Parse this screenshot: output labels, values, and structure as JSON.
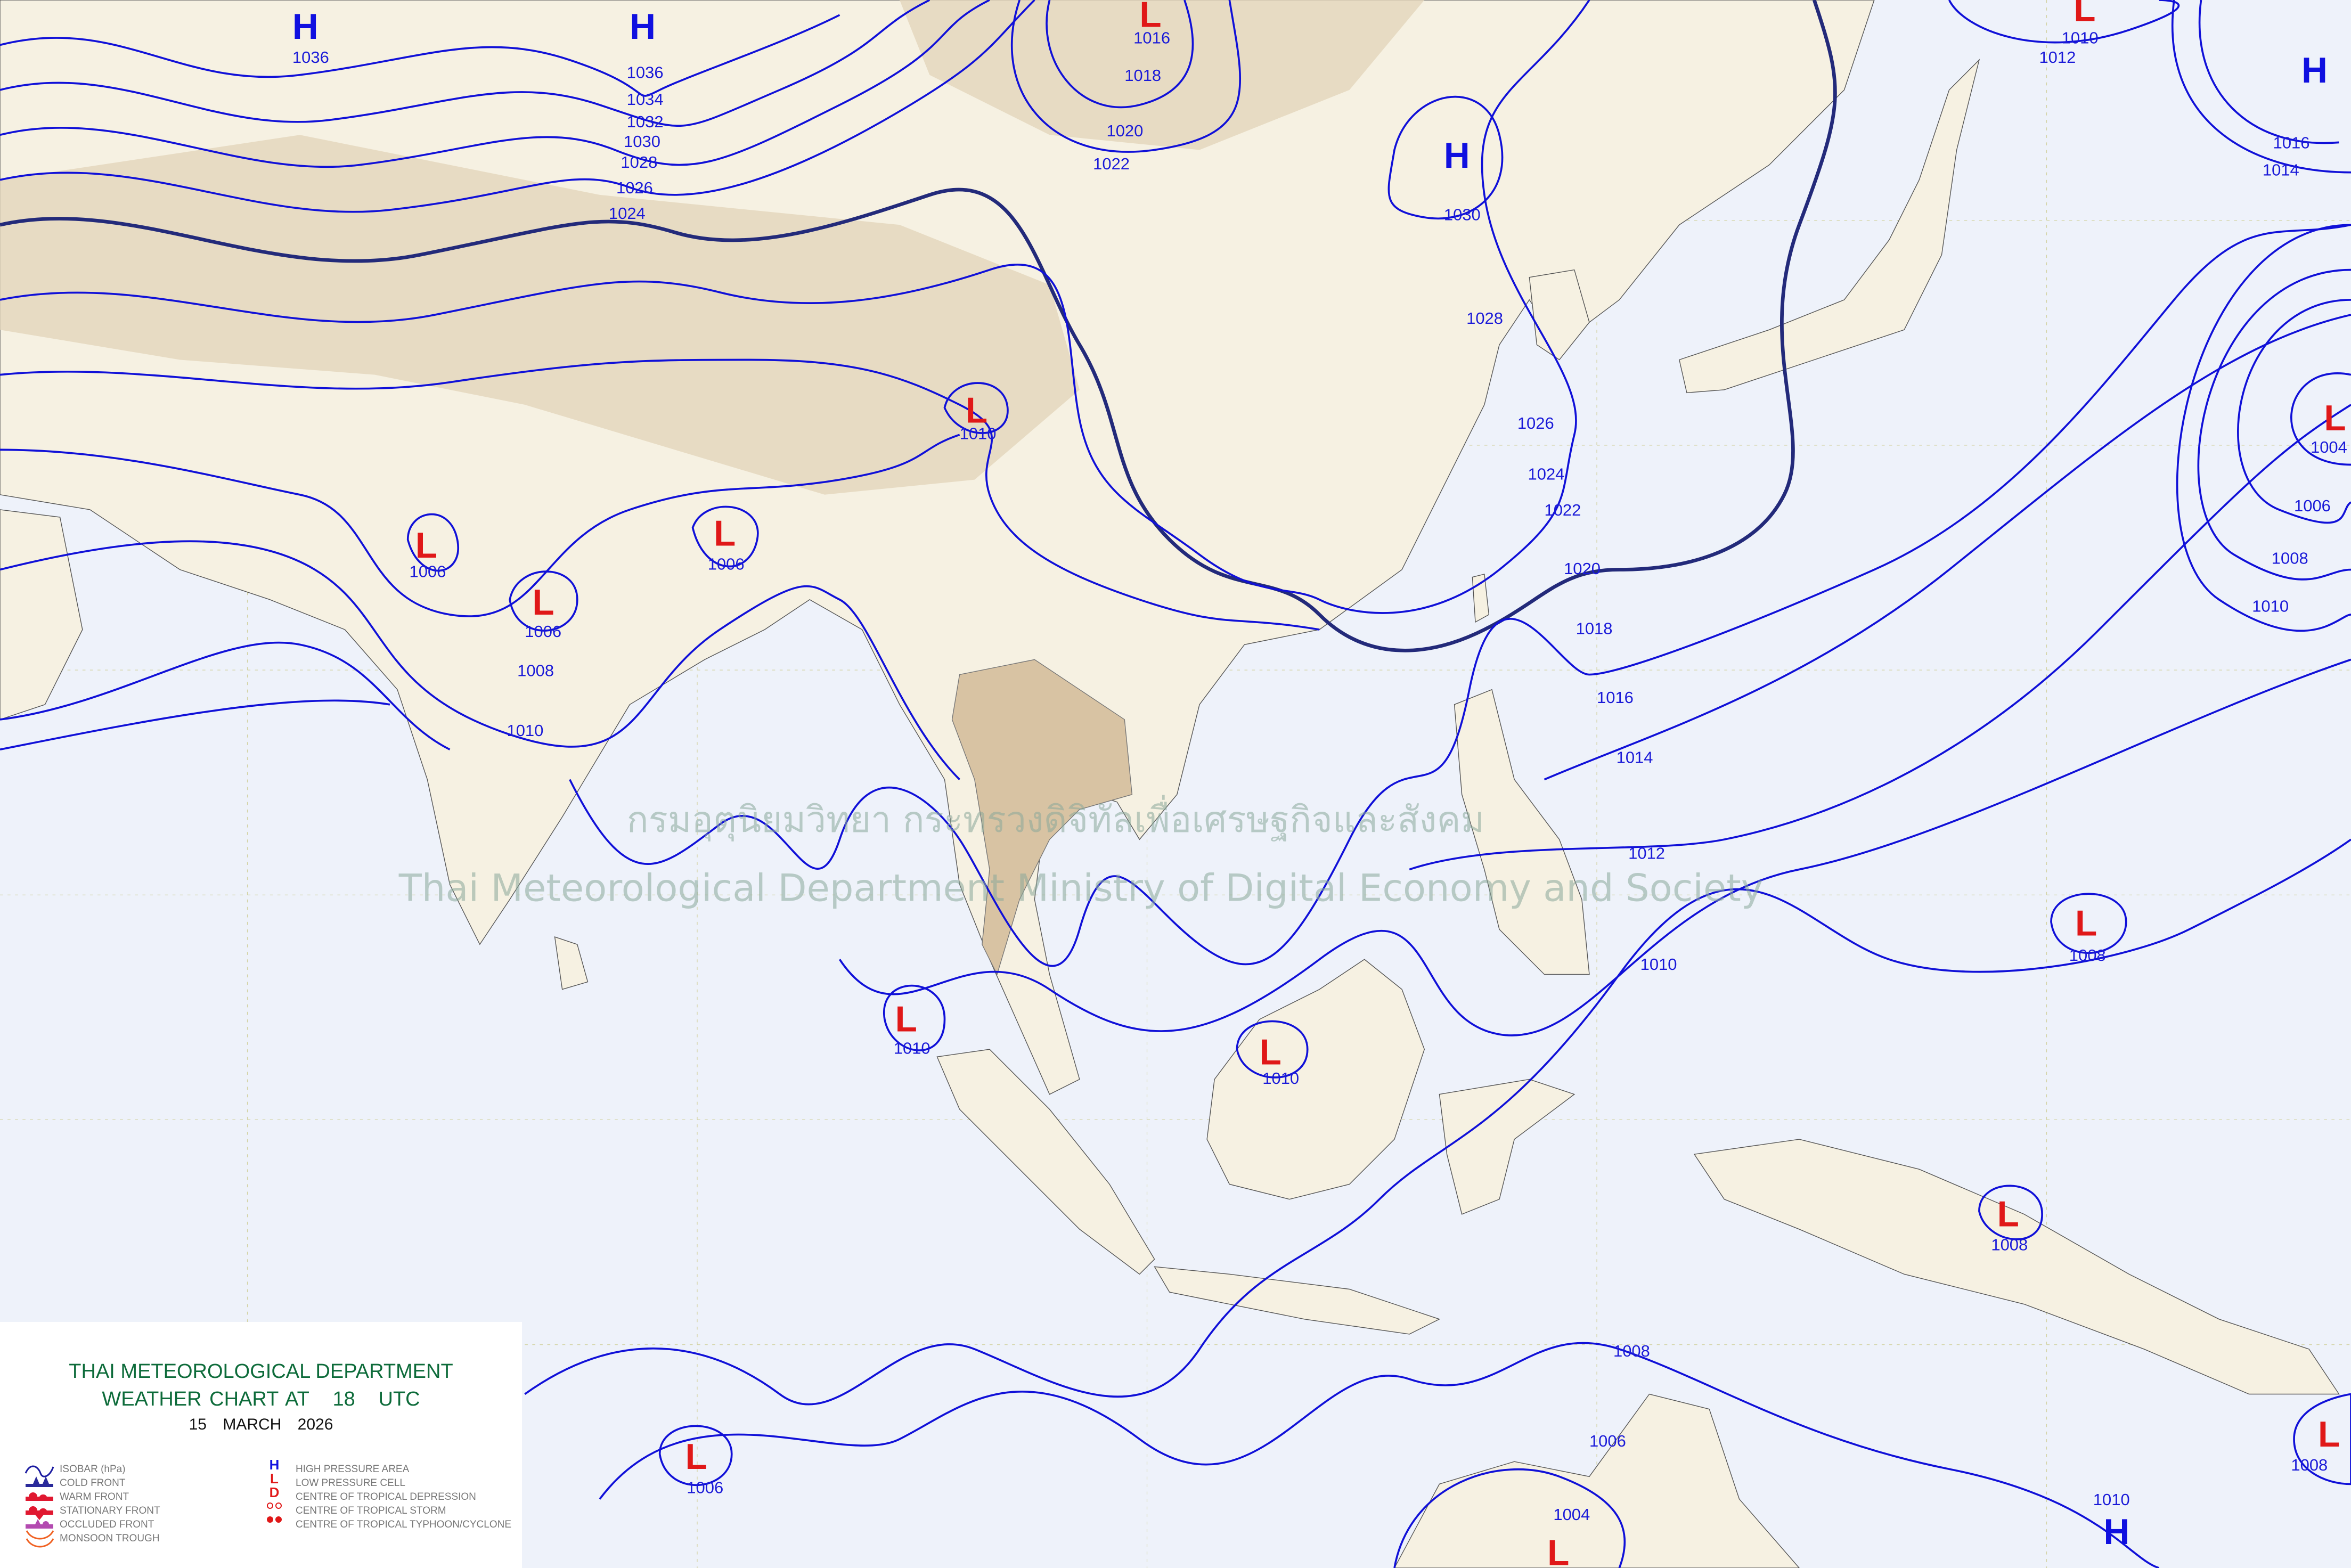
{
  "legend": {
    "title": "THAI METEOROLOGICAL DEPARTMENT",
    "subtitle_prefix": "WEATHER CHART AT",
    "hour": "18",
    "hour_unit": "UTC",
    "day": "15",
    "month": "MARCH",
    "year": "2026",
    "left_items": [
      "ISOBAR (hPa)",
      "COLD FRONT",
      "WARM FRONT",
      "STATIONARY FRONT",
      "OCCLUDED FRONT",
      "MONSOON TROUGH"
    ],
    "right_items": [
      "HIGH PRESSURE AREA",
      "LOW PRESSURE CELL",
      "CENTRE OF TROPICAL DEPRESSION",
      "CENTRE OF TROPICAL STORM",
      "CENTRE OF TROPICAL TYPHOON/CYCLONE"
    ],
    "right_symbols": [
      "H",
      "L",
      "D"
    ]
  },
  "watermark": {
    "thai": "กรมอุตุนิยมวิทยา กระทรวงดิจิทัลเพื่อเศรษฐกิจและสังคม",
    "english": "Thai Meteorological Department Ministry of Digital Economy and Society"
  },
  "colors": {
    "isobar": "#1010d8",
    "high": "#1010e0",
    "low": "#e01818",
    "title": "#0d6b3a",
    "ocean": "#eef2fa",
    "land": "#f6f1e2"
  },
  "pressure_centers": [
    {
      "type": "H",
      "value": "1036"
    },
    {
      "type": "H",
      "value": "1036"
    },
    {
      "type": "L",
      "value": "1016"
    },
    {
      "type": "L",
      "value": "1010"
    },
    {
      "type": "H",
      "value": ""
    },
    {
      "type": "H",
      "value": "1030"
    },
    {
      "type": "L",
      "value": "1010"
    },
    {
      "type": "L",
      "value": "1006"
    },
    {
      "type": "L",
      "value": "1006"
    },
    {
      "type": "L",
      "value": "1006"
    },
    {
      "type": "L",
      "value": "1004"
    },
    {
      "type": "L",
      "value": "1008"
    },
    {
      "type": "L",
      "value": "1010"
    },
    {
      "type": "L",
      "value": "1010"
    },
    {
      "type": "L",
      "value": "1008"
    },
    {
      "type": "L",
      "value": "1006"
    },
    {
      "type": "L",
      "value": "1004"
    },
    {
      "type": "H",
      "value": "1010"
    },
    {
      "type": "L",
      "value": "1008"
    }
  ],
  "isobar_labels": [
    "1034",
    "1032",
    "1030",
    "1028",
    "1026",
    "1024",
    "1020",
    "1022",
    "1018",
    "1012",
    "1016",
    "1014",
    "1028",
    "1026",
    "1024",
    "1022",
    "1020",
    "1018",
    "1016",
    "1014",
    "1012",
    "1010",
    "1008",
    "1010",
    "1006",
    "1008",
    "1010",
    "1008",
    "1006"
  ]
}
